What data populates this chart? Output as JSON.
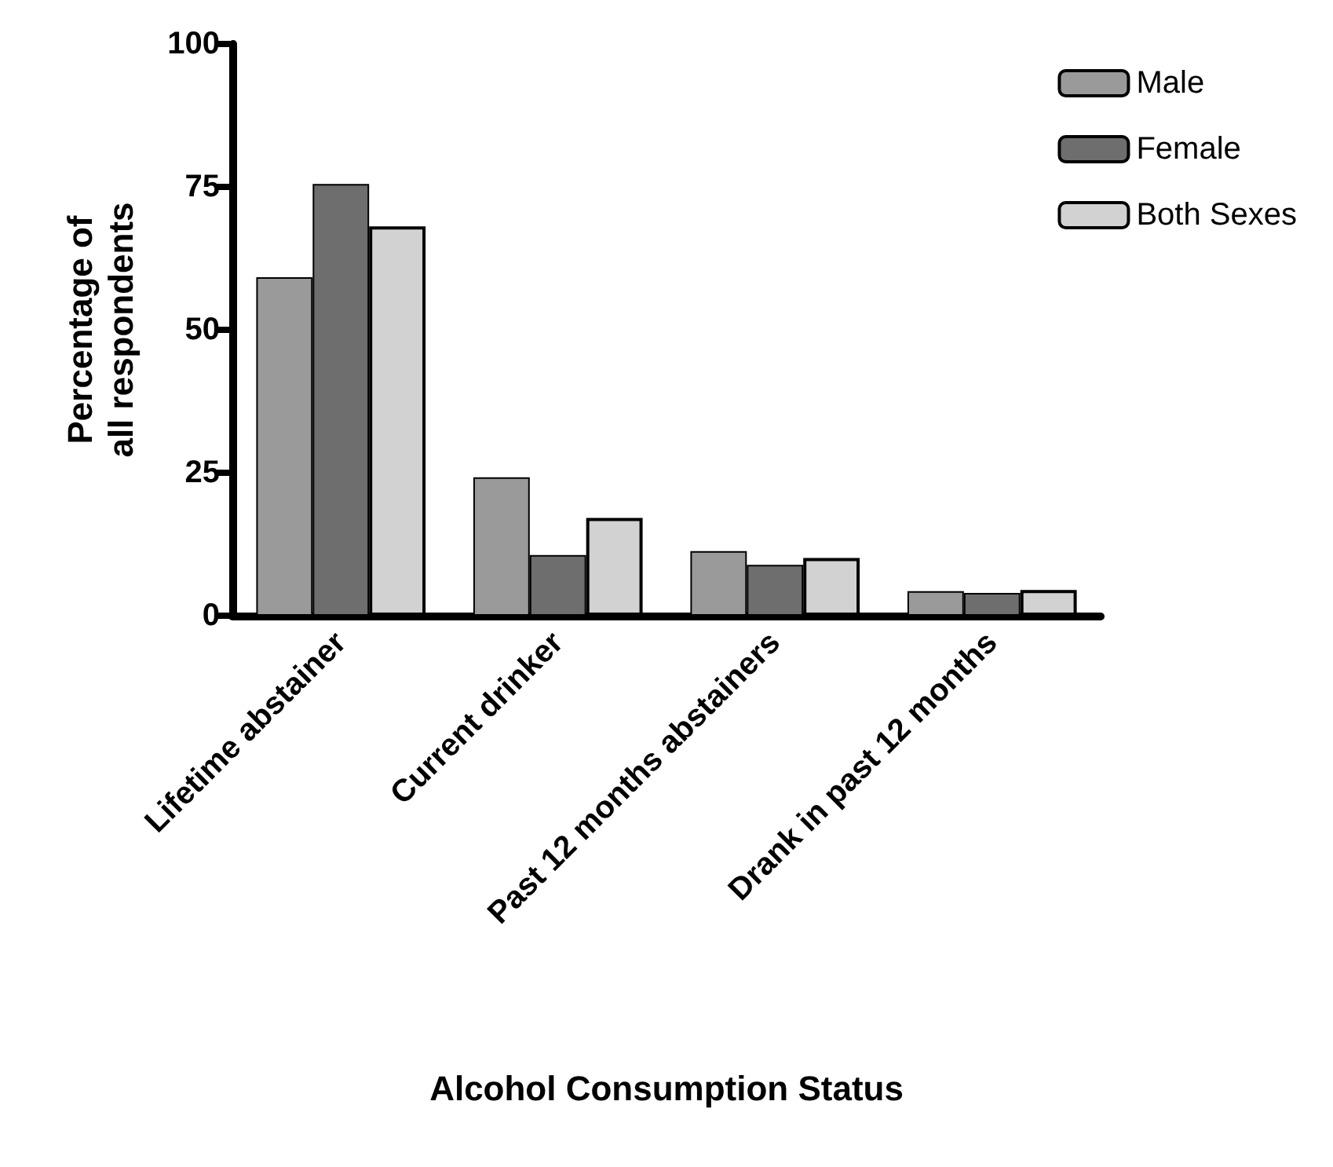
{
  "chart_data": {
    "type": "bar",
    "xlabel": "Alcohol Consumption Status",
    "ylabel": "Percentage of all respondents",
    "categories": [
      "Lifetime abstainer",
      "Current drinker",
      "Past 12 months abstainers",
      "Drank in past 12 months"
    ],
    "series": [
      {
        "name": "Male",
        "color": "#9a9a9a",
        "values": [
          59.2,
          24.2,
          11.3,
          4.3
        ]
      },
      {
        "name": "Female",
        "color": "#6e6e6e",
        "values": [
          75.5,
          10.6,
          8.9,
          4.0
        ]
      },
      {
        "name": "Both Sexes",
        "color": "#d2d2d2",
        "values": [
          68.1,
          17.1,
          10.1,
          4.5
        ]
      }
    ],
    "ylim": [
      0,
      100
    ],
    "yticks": [
      0,
      25,
      50,
      75,
      100
    ],
    "grid": false,
    "legend": "top right"
  }
}
